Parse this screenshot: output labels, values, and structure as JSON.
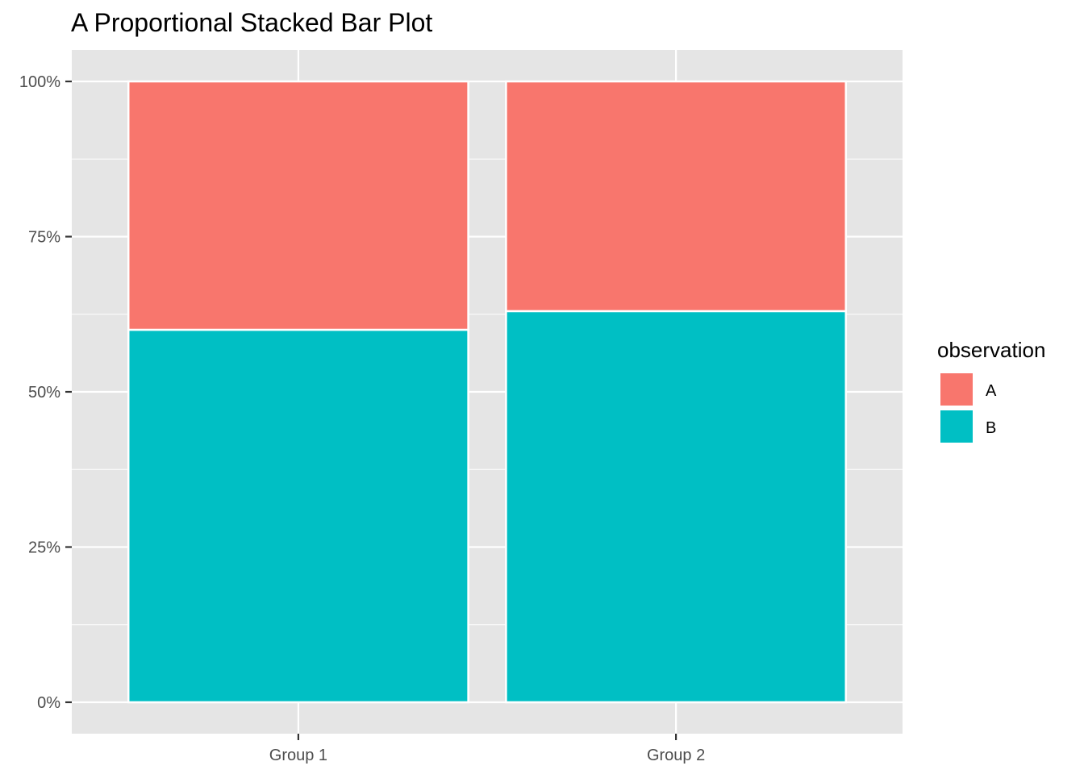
{
  "chart_data": {
    "type": "bar",
    "stacked": true,
    "proportional": true,
    "title": "A Proportional Stacked Bar Plot",
    "xlabel": "",
    "ylabel": "",
    "categories": [
      "Group 1",
      "Group 2"
    ],
    "series": [
      {
        "name": "A",
        "color": "#F8766D",
        "values": [
          0.4,
          0.37
        ]
      },
      {
        "name": "B",
        "color": "#00BFC4",
        "values": [
          0.6,
          0.63
        ]
      }
    ],
    "stack_order_bottom_to_top": [
      "B",
      "A"
    ],
    "ylim": [
      0,
      1
    ],
    "y_ticks": [
      0,
      0.25,
      0.5,
      0.75,
      1
    ],
    "y_tick_labels": [
      "0%",
      "25%",
      "50%",
      "75%",
      "100%"
    ],
    "grid": true,
    "legend": {
      "title": "observation",
      "position": "right",
      "entries": [
        "A",
        "B"
      ]
    },
    "colors": {
      "panel": "#E5E5E5",
      "grid": "#FFFFFF",
      "A": "#F8766D",
      "B": "#00BFC4"
    }
  }
}
